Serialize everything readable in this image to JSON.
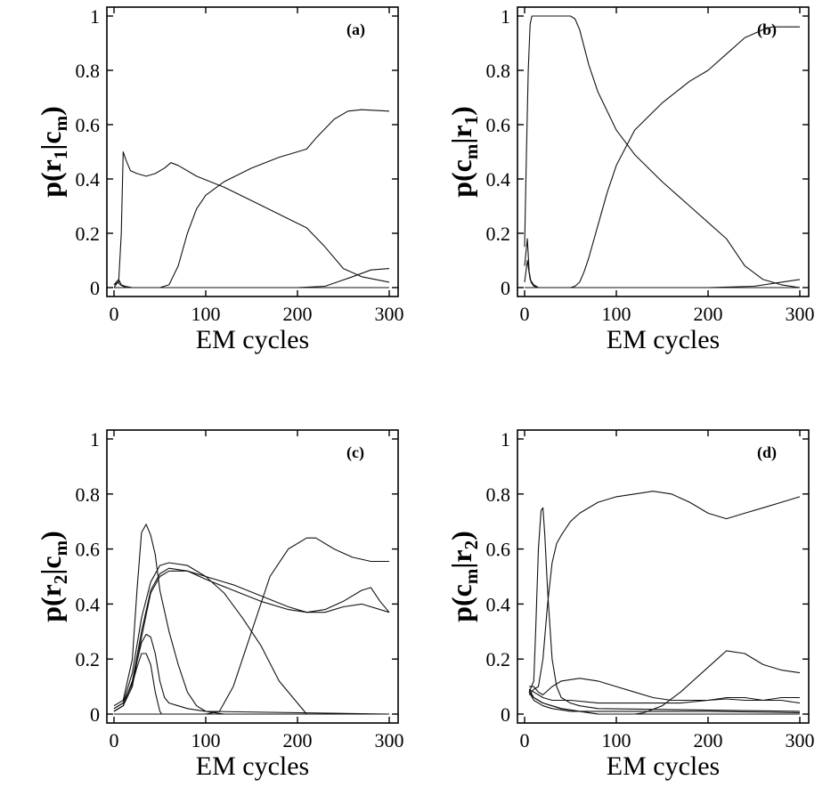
{
  "chart_data": [
    {
      "type": "line",
      "panel_label": "(a)",
      "xlabel": "EM cycles",
      "ylabel": {
        "base": "p(r",
        "sub1": "1",
        "mid": "|c",
        "sub2": "m",
        "end": ")"
      },
      "xlim": [
        0,
        300
      ],
      "ylim": [
        0,
        1
      ],
      "xticks": [
        0,
        100,
        200,
        300
      ],
      "yticks": [
        0,
        0.2,
        0.4,
        0.6,
        0.8,
        1
      ],
      "ytick_labels": [
        "0",
        "0.2",
        "0.4",
        "0.6",
        "0.8",
        "1"
      ],
      "series": [
        {
          "x": [
            0,
            5,
            8,
            10,
            13,
            18,
            25,
            35,
            45,
            55,
            62,
            70,
            90,
            120,
            150,
            180,
            210,
            230,
            250,
            270,
            300
          ],
          "y": [
            0.01,
            0.02,
            0.2,
            0.5,
            0.47,
            0.43,
            0.42,
            0.41,
            0.42,
            0.44,
            0.46,
            0.45,
            0.41,
            0.37,
            0.32,
            0.27,
            0.22,
            0.15,
            0.07,
            0.04,
            0.02
          ]
        },
        {
          "x": [
            0,
            50,
            60,
            70,
            80,
            90,
            100,
            120,
            150,
            180,
            200,
            210,
            220,
            240,
            255,
            270,
            300
          ],
          "y": [
            0,
            0,
            0.01,
            0.08,
            0.2,
            0.29,
            0.34,
            0.39,
            0.44,
            0.48,
            0.5,
            0.51,
            0.55,
            0.62,
            0.65,
            0.655,
            0.65
          ]
        },
        {
          "x": [
            0,
            5,
            8,
            12,
            20,
            30,
            200,
            230,
            260,
            280,
            300
          ],
          "y": [
            0.01,
            0.03,
            0.01,
            0.005,
            0,
            0,
            0,
            0.005,
            0.04,
            0.065,
            0.07
          ]
        },
        {
          "x": [
            0,
            4,
            7,
            10,
            14,
            300
          ],
          "y": [
            0,
            0.02,
            0.01,
            0.005,
            0,
            0
          ]
        }
      ]
    },
    {
      "type": "line",
      "panel_label": "(b)",
      "xlabel": "EM cycles",
      "ylabel": {
        "base": "p(c",
        "sub1": "m",
        "mid": "|r",
        "sub2": "1",
        "end": ")"
      },
      "xlim": [
        0,
        300
      ],
      "ylim": [
        0,
        1
      ],
      "xticks": [
        0,
        100,
        200,
        300
      ],
      "yticks": [
        0,
        0.2,
        0.4,
        0.6,
        0.8,
        1
      ],
      "ytick_labels": [
        "0",
        "0.2",
        "0.4",
        "0.6",
        "0.8",
        "1"
      ],
      "series": [
        {
          "x": [
            0,
            2,
            4,
            6,
            8,
            10,
            15,
            20,
            40,
            50,
            55,
            60,
            70,
            80,
            100,
            120,
            150,
            180,
            200,
            220,
            240,
            260,
            280,
            300
          ],
          "y": [
            0.15,
            0.5,
            0.8,
            0.97,
            1,
            1,
            1,
            1,
            1,
            1,
            0.99,
            0.95,
            0.82,
            0.72,
            0.58,
            0.49,
            0.39,
            0.3,
            0.24,
            0.18,
            0.08,
            0.03,
            0.01,
            0
          ]
        },
        {
          "x": [
            0,
            50,
            55,
            60,
            65,
            70,
            80,
            90,
            100,
            120,
            150,
            180,
            200,
            220,
            240,
            260,
            270,
            300
          ],
          "y": [
            0,
            0,
            0.005,
            0.02,
            0.06,
            0.11,
            0.23,
            0.35,
            0.45,
            0.58,
            0.68,
            0.76,
            0.8,
            0.86,
            0.92,
            0.95,
            0.96,
            0.96
          ]
        },
        {
          "x": [
            0,
            3,
            5,
            7,
            10,
            15,
            300
          ],
          "y": [
            0.08,
            0.18,
            0.06,
            0.02,
            0.005,
            0,
            0
          ]
        },
        {
          "x": [
            0,
            3,
            6,
            10,
            15,
            200,
            250,
            280,
            300
          ],
          "y": [
            0.02,
            0.1,
            0.03,
            0.01,
            0,
            0,
            0.005,
            0.02,
            0.03
          ]
        }
      ]
    },
    {
      "type": "line",
      "panel_label": "(c)",
      "xlabel": "EM cycles",
      "ylabel": {
        "base": "p(r",
        "sub1": "2",
        "mid": "|c",
        "sub2": "m",
        "end": ")"
      },
      "xlim": [
        0,
        300
      ],
      "ylim": [
        0,
        1
      ],
      "xticks": [
        0,
        100,
        200,
        300
      ],
      "yticks": [
        0,
        0.2,
        0.4,
        0.6,
        0.8,
        1
      ],
      "ytick_labels": [
        "0",
        "0.2",
        "0.4",
        "0.6",
        "0.8",
        "1"
      ],
      "series": [
        {
          "x": [
            0,
            10,
            20,
            25,
            30,
            35,
            40,
            45,
            50,
            60,
            70,
            80,
            90,
            100,
            300
          ],
          "y": [
            0.03,
            0.05,
            0.2,
            0.45,
            0.66,
            0.69,
            0.65,
            0.58,
            0.45,
            0.3,
            0.18,
            0.08,
            0.03,
            0.01,
            0
          ]
        },
        {
          "x": [
            0,
            10,
            20,
            30,
            40,
            50,
            60,
            80,
            100,
            120,
            140,
            160,
            180,
            200,
            210,
            300
          ],
          "y": [
            0.02,
            0.04,
            0.15,
            0.35,
            0.48,
            0.54,
            0.55,
            0.54,
            0.5,
            0.44,
            0.35,
            0.25,
            0.12,
            0.04,
            0,
            0
          ]
        },
        {
          "x": [
            0,
            10,
            20,
            30,
            40,
            50,
            60,
            80,
            100,
            130,
            160,
            190,
            210,
            230,
            250,
            270,
            300
          ],
          "y": [
            0.01,
            0.03,
            0.12,
            0.3,
            0.45,
            0.51,
            0.53,
            0.52,
            0.5,
            0.47,
            0.43,
            0.39,
            0.37,
            0.37,
            0.39,
            0.4,
            0.37
          ]
        },
        {
          "x": [
            0,
            10,
            20,
            30,
            40,
            50,
            60,
            80,
            100,
            130,
            160,
            190,
            210,
            230,
            250,
            270,
            280,
            290,
            300
          ],
          "y": [
            0.01,
            0.03,
            0.1,
            0.28,
            0.44,
            0.5,
            0.52,
            0.52,
            0.49,
            0.45,
            0.41,
            0.38,
            0.37,
            0.38,
            0.41,
            0.45,
            0.46,
            0.41,
            0.37
          ]
        },
        {
          "x": [
            0,
            100,
            115,
            130,
            150,
            170,
            190,
            210,
            220,
            240,
            260,
            280,
            300
          ],
          "y": [
            0,
            0,
            0.01,
            0.1,
            0.3,
            0.5,
            0.6,
            0.64,
            0.64,
            0.6,
            0.57,
            0.555,
            0.555
          ]
        },
        {
          "x": [
            0,
            10,
            20,
            30,
            35,
            40,
            45,
            50,
            55,
            60,
            70,
            80,
            90,
            100,
            120,
            300
          ],
          "y": [
            0.01,
            0.03,
            0.12,
            0.26,
            0.29,
            0.28,
            0.22,
            0.12,
            0.06,
            0.04,
            0.03,
            0.02,
            0.015,
            0.01,
            0,
            0
          ]
        },
        {
          "x": [
            0,
            10,
            20,
            25,
            30,
            35,
            40,
            45,
            50,
            52,
            300
          ],
          "y": [
            0.02,
            0.04,
            0.11,
            0.17,
            0.22,
            0.22,
            0.18,
            0.08,
            0.01,
            0,
            0
          ]
        }
      ]
    },
    {
      "type": "line",
      "panel_label": "(d)",
      "xlabel": "EM cycles",
      "ylabel": {
        "base": "p(c",
        "sub1": "m",
        "mid": "|r",
        "sub2": "2",
        "end": ")"
      },
      "xlim": [
        0,
        300
      ],
      "ylim": [
        0,
        1
      ],
      "xticks": [
        0,
        100,
        200,
        300
      ],
      "yticks": [
        0,
        0.2,
        0.4,
        0.6,
        0.8,
        1
      ],
      "ytick_labels": [
        "0",
        "0.2",
        "0.4",
        "0.6",
        "0.8",
        "1"
      ],
      "series": [
        {
          "x": [
            5,
            10,
            12,
            15,
            18,
            20,
            22,
            25,
            30,
            35,
            40,
            50,
            60,
            80,
            300
          ],
          "y": [
            0.08,
            0.12,
            0.3,
            0.6,
            0.74,
            0.75,
            0.65,
            0.45,
            0.2,
            0.1,
            0.06,
            0.04,
            0.03,
            0.02,
            0.01
          ]
        },
        {
          "x": [
            5,
            10,
            15,
            20,
            25,
            30,
            35,
            40,
            50,
            60,
            80,
            100,
            120,
            140,
            160,
            180,
            200,
            220,
            240,
            260,
            280,
            300
          ],
          "y": [
            0.07,
            0.09,
            0.1,
            0.2,
            0.4,
            0.55,
            0.62,
            0.65,
            0.7,
            0.73,
            0.77,
            0.79,
            0.8,
            0.81,
            0.8,
            0.77,
            0.73,
            0.71,
            0.73,
            0.75,
            0.77,
            0.79
          ]
        },
        {
          "x": [
            5,
            10,
            15,
            20,
            30,
            40,
            60,
            80,
            100,
            120,
            140,
            160,
            180,
            200,
            220,
            240,
            260,
            280,
            300
          ],
          "y": [
            0.1,
            0.1,
            0.08,
            0.07,
            0.1,
            0.12,
            0.13,
            0.12,
            0.1,
            0.08,
            0.06,
            0.05,
            0.05,
            0.05,
            0.055,
            0.05,
            0.05,
            0.06,
            0.06
          ]
        },
        {
          "x": [
            5,
            10,
            15,
            20,
            30,
            50,
            80,
            110,
            140,
            170,
            200,
            220,
            240,
            260,
            280,
            300
          ],
          "y": [
            0.09,
            0.08,
            0.07,
            0.06,
            0.05,
            0.05,
            0.04,
            0.04,
            0.04,
            0.04,
            0.05,
            0.06,
            0.06,
            0.05,
            0.05,
            0.04
          ]
        },
        {
          "x": [
            5,
            10,
            20,
            40,
            60,
            80,
            100,
            120,
            130,
            150,
            170,
            190,
            210,
            220,
            240,
            260,
            280,
            300
          ],
          "y": [
            0.08,
            0.06,
            0.04,
            0.02,
            0.01,
            0,
            0,
            0,
            0.005,
            0.03,
            0.08,
            0.14,
            0.2,
            0.23,
            0.22,
            0.18,
            0.16,
            0.15
          ]
        },
        {
          "x": [
            5,
            10,
            20,
            40,
            60,
            80,
            100,
            120,
            140,
            300
          ],
          "y": [
            0.09,
            0.06,
            0.04,
            0.02,
            0.01,
            0,
            0,
            0,
            0,
            0
          ]
        },
        {
          "x": [
            5,
            10,
            20,
            30,
            50,
            100,
            200,
            300
          ],
          "y": [
            0.08,
            0.05,
            0.03,
            0.02,
            0.01,
            0.01,
            0.01,
            0.005
          ]
        }
      ]
    }
  ]
}
